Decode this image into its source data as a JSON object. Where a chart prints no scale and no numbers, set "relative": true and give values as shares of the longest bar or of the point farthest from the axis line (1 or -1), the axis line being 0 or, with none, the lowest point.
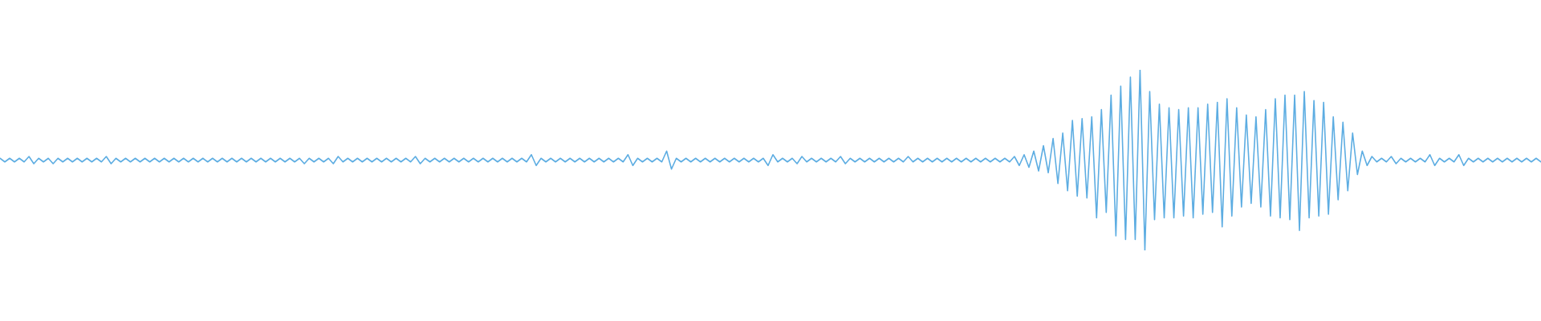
{
  "chart_data": {
    "type": "line",
    "relative": true,
    "marker": "none",
    "color": "#5dade2",
    "categories": [
      null,
      null,
      null,
      null,
      null,
      null,
      null,
      null,
      null,
      null,
      null,
      null,
      null,
      null,
      null,
      null,
      null,
      null,
      null,
      null,
      null,
      null,
      null,
      null,
      null,
      null,
      null,
      null,
      null,
      null,
      null,
      null,
      null,
      null,
      null,
      null,
      null,
      null,
      null,
      null,
      null,
      null,
      null,
      null,
      null,
      null,
      null,
      null,
      null,
      null,
      null,
      null,
      null,
      null,
      null,
      null,
      null,
      null,
      null,
      null,
      null,
      null,
      null,
      null,
      null,
      null,
      null,
      null,
      null,
      null,
      null,
      null,
      null,
      null,
      null,
      null,
      null,
      null,
      null,
      null,
      null,
      null,
      null,
      null,
      null,
      null,
      null,
      null,
      null,
      null,
      null,
      null,
      null,
      null,
      null,
      null,
      null,
      null,
      null,
      null,
      null,
      null,
      null,
      null,
      null,
      null,
      null,
      null,
      null,
      null,
      null,
      null,
      null,
      null,
      null,
      null,
      null,
      null,
      null,
      null,
      null,
      null,
      null,
      null,
      null,
      null,
      null,
      null,
      null,
      null,
      null,
      null,
      null,
      null,
      null,
      null,
      null,
      null,
      null,
      null,
      null,
      null,
      null,
      null,
      null,
      null,
      null,
      null,
      null,
      null,
      null,
      null,
      null,
      null,
      null,
      null,
      null,
      null,
      null,
      null,
      null,
      null,
      null,
      null,
      null,
      null,
      null,
      null,
      null,
      null,
      null,
      null,
      null,
      null,
      null,
      null,
      null,
      null,
      null,
      null,
      null,
      null,
      null,
      null,
      null,
      null,
      null,
      null,
      null,
      null,
      null,
      null,
      null,
      null,
      null,
      null,
      null,
      null,
      null,
      null,
      null,
      null,
      null,
      null,
      null,
      null,
      null,
      null,
      null,
      null,
      null,
      null,
      null,
      null,
      null,
      null,
      null,
      null,
      null,
      null,
      null,
      null,
      null,
      null,
      null,
      null,
      null,
      null,
      null,
      null,
      null,
      null,
      null,
      null,
      null,
      null,
      null,
      null,
      null,
      null,
      null,
      null,
      null,
      null,
      null,
      null,
      null,
      null,
      null,
      null,
      null,
      null,
      null,
      null,
      null,
      null,
      null,
      null,
      null,
      null,
      null,
      null,
      null,
      null,
      null,
      null,
      null,
      null,
      null,
      null,
      null,
      null,
      null,
      null,
      null,
      null,
      null,
      null,
      null,
      null,
      null,
      null,
      null,
      null,
      null,
      null,
      null,
      null,
      null,
      null,
      null,
      null,
      null,
      null,
      null,
      null,
      null,
      null,
      null,
      null,
      null,
      null,
      null,
      null,
      null,
      null,
      null,
      null,
      null,
      null,
      null,
      null,
      null,
      null,
      null,
      null,
      null,
      null,
      null,
      null
    ],
    "values": [
      0.51,
      0.49,
      0.51,
      0.49,
      0.51,
      0.49,
      0.52,
      0.48,
      0.51,
      0.49,
      0.51,
      0.48,
      0.51,
      0.49,
      0.51,
      0.49,
      0.51,
      0.49,
      0.51,
      0.49,
      0.51,
      0.49,
      0.52,
      0.48,
      0.51,
      0.49,
      0.51,
      0.49,
      0.51,
      0.49,
      0.51,
      0.49,
      0.51,
      0.49,
      0.51,
      0.49,
      0.51,
      0.49,
      0.51,
      0.49,
      0.51,
      0.49,
      0.51,
      0.49,
      0.51,
      0.49,
      0.51,
      0.49,
      0.51,
      0.49,
      0.51,
      0.49,
      0.51,
      0.49,
      0.51,
      0.49,
      0.51,
      0.49,
      0.51,
      0.49,
      0.51,
      0.49,
      0.51,
      0.48,
      0.51,
      0.49,
      0.51,
      0.49,
      0.51,
      0.48,
      0.52,
      0.49,
      0.51,
      0.49,
      0.51,
      0.49,
      0.51,
      0.49,
      0.51,
      0.49,
      0.51,
      0.49,
      0.51,
      0.49,
      0.51,
      0.49,
      0.52,
      0.48,
      0.51,
      0.49,
      0.51,
      0.49,
      0.51,
      0.49,
      0.51,
      0.49,
      0.51,
      0.49,
      0.51,
      0.49,
      0.51,
      0.49,
      0.51,
      0.49,
      0.51,
      0.49,
      0.51,
      0.49,
      0.51,
      0.49,
      0.53,
      0.47,
      0.51,
      0.49,
      0.51,
      0.49,
      0.51,
      0.49,
      0.51,
      0.49,
      0.51,
      0.49,
      0.51,
      0.49,
      0.51,
      0.49,
      0.51,
      0.49,
      0.51,
      0.49,
      0.53,
      0.47,
      0.51,
      0.49,
      0.51,
      0.49,
      0.51,
      0.49,
      0.55,
      0.45,
      0.51,
      0.49,
      0.51,
      0.49,
      0.51,
      0.49,
      0.51,
      0.49,
      0.51,
      0.49,
      0.51,
      0.49,
      0.51,
      0.49,
      0.51,
      0.49,
      0.51,
      0.49,
      0.51,
      0.47,
      0.53,
      0.49,
      0.51,
      0.49,
      0.51,
      0.48,
      0.52,
      0.49,
      0.51,
      0.49,
      0.51,
      0.49,
      0.51,
      0.49,
      0.52,
      0.48,
      0.51,
      0.49,
      0.51,
      0.49,
      0.51,
      0.49,
      0.51,
      0.49,
      0.51,
      0.49,
      0.51,
      0.49,
      0.52,
      0.49,
      0.51,
      0.49,
      0.51,
      0.49,
      0.51,
      0.49,
      0.51,
      0.49,
      0.51,
      0.49,
      0.51,
      0.49,
      0.51,
      0.49,
      0.51,
      0.49,
      0.51,
      0.49,
      0.51,
      0.49,
      0.52,
      0.47,
      0.53,
      0.46,
      0.55,
      0.44,
      0.58,
      0.43,
      0.62,
      0.37,
      0.65,
      0.33,
      0.72,
      0.3,
      0.73,
      0.29,
      0.74,
      0.18,
      0.78,
      0.21,
      0.86,
      0.08,
      0.91,
      0.06,
      0.96,
      0.06,
      1.0,
      0.0,
      0.88,
      0.17,
      0.81,
      0.18,
      0.79,
      0.18,
      0.78,
      0.19,
      0.79,
      0.18,
      0.79,
      0.2,
      0.81,
      0.21,
      0.82,
      0.13,
      0.84,
      0.19,
      0.79,
      0.24,
      0.75,
      0.26,
      0.74,
      0.24,
      0.78,
      0.19,
      0.84,
      0.18,
      0.86,
      0.17,
      0.86,
      0.11,
      0.88,
      0.18,
      0.83,
      0.19,
      0.82,
      0.2,
      0.74,
      0.28,
      0.71,
      0.33,
      0.65,
      0.42,
      0.55,
      0.47,
      0.52,
      0.49,
      0.51,
      0.49,
      0.52,
      0.48,
      0.51,
      0.49,
      0.51,
      0.49,
      0.51,
      0.49,
      0.53,
      0.47,
      0.51,
      0.49,
      0.51,
      0.49,
      0.53,
      0.47,
      0.51,
      0.49,
      0.51,
      0.49,
      0.51,
      0.49,
      0.51,
      0.49,
      0.51,
      0.49,
      0.51,
      0.49,
      0.51,
      0.49,
      0.51,
      0.49
    ]
  }
}
